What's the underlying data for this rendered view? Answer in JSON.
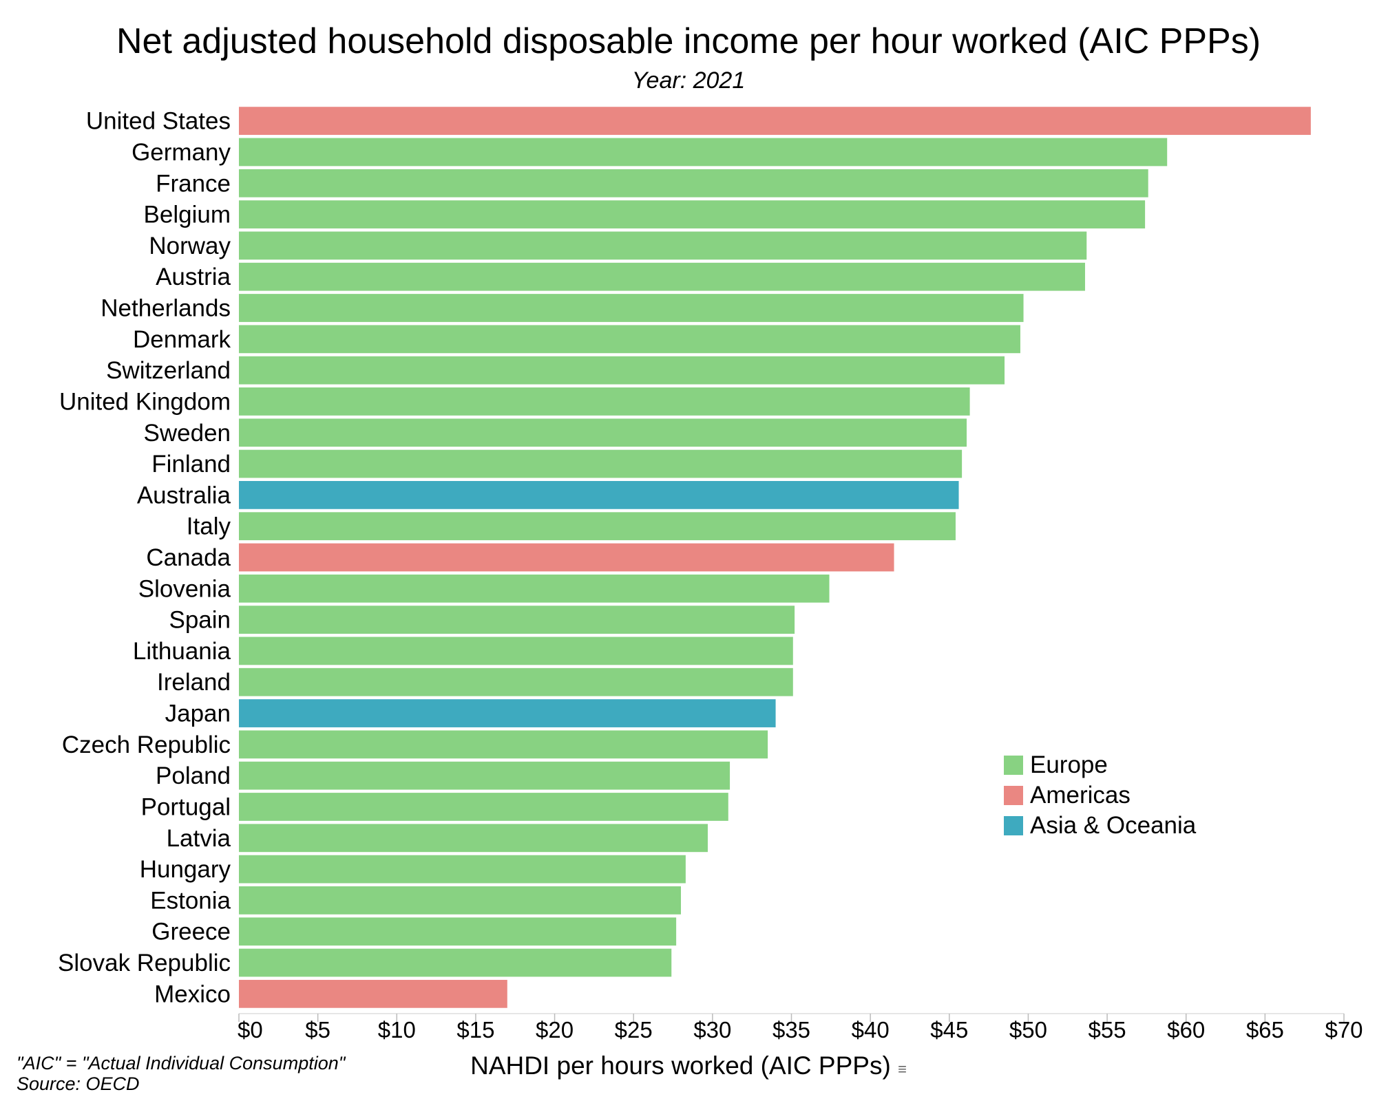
{
  "chart_data": {
    "type": "bar",
    "orientation": "horizontal",
    "title": "Net adjusted household disposable income per hour worked (AIC PPPs)",
    "subtitle": "Year: 2021",
    "xlabel": "NAHDI per hours worked (AIC PPPs)",
    "xlim": [
      0,
      70
    ],
    "xticks": [
      "$0",
      "$5",
      "$10",
      "$15",
      "$20",
      "$25",
      "$30",
      "$35",
      "$40",
      "$45",
      "$50",
      "$55",
      "$60",
      "$65",
      "$70"
    ],
    "grid": false,
    "legend_position": "bottom-right",
    "legend": [
      {
        "name": "Europe",
        "color": "#88d282"
      },
      {
        "name": "Americas",
        "color": "#ea8782"
      },
      {
        "name": "Asia & Oceania",
        "color": "#3eaabf"
      }
    ],
    "categories": [
      "United States",
      "Germany",
      "France",
      "Belgium",
      "Norway",
      "Austria",
      "Netherlands",
      "Denmark",
      "Switzerland",
      "United Kingdom",
      "Sweden",
      "Finland",
      "Australia",
      "Italy",
      "Canada",
      "Slovenia",
      "Spain",
      "Lithuania",
      "Ireland",
      "Japan",
      "Czech Republic",
      "Poland",
      "Portugal",
      "Latvia",
      "Hungary",
      "Estonia",
      "Greece",
      "Slovak Republic",
      "Mexico"
    ],
    "values": [
      67.9,
      58.8,
      57.6,
      57.4,
      53.7,
      53.6,
      49.7,
      49.5,
      48.5,
      46.3,
      46.1,
      45.8,
      45.6,
      45.4,
      41.5,
      37.4,
      35.2,
      35.1,
      35.1,
      34.0,
      33.5,
      31.1,
      31.0,
      29.7,
      28.3,
      28.0,
      27.7,
      27.4,
      17.0
    ],
    "regions": [
      "Americas",
      "Europe",
      "Europe",
      "Europe",
      "Europe",
      "Europe",
      "Europe",
      "Europe",
      "Europe",
      "Europe",
      "Europe",
      "Europe",
      "Asia & Oceania",
      "Europe",
      "Americas",
      "Europe",
      "Europe",
      "Europe",
      "Europe",
      "Asia & Oceania",
      "Europe",
      "Europe",
      "Europe",
      "Europe",
      "Europe",
      "Europe",
      "Europe",
      "Europe",
      "Americas"
    ]
  },
  "notes": [
    "\"AIC\" = \"Actual Individual Consumption\"",
    "Source: OECD"
  ],
  "sort_icon": "sort-icon"
}
